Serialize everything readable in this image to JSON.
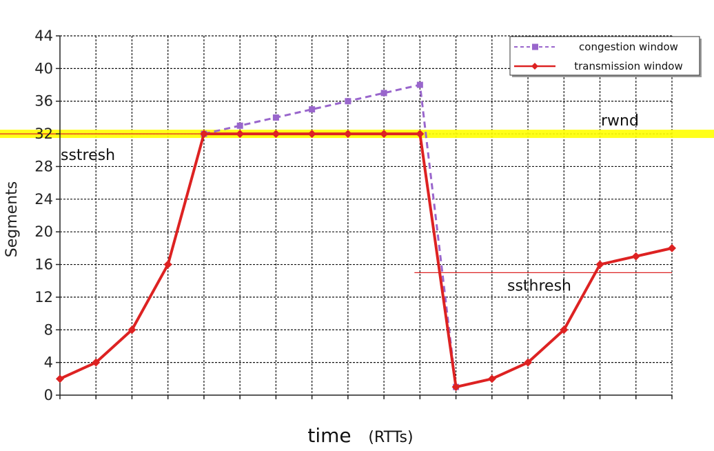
{
  "chart_data": {
    "type": "line",
    "ylabel": "Segments",
    "xlabel": "time",
    "xlabel_unit": "(RTTs)",
    "ylim": [
      0,
      44
    ],
    "yticks": [
      0,
      4,
      8,
      12,
      16,
      20,
      24,
      28,
      32,
      36,
      40,
      44
    ],
    "xlim": [
      0,
      17
    ],
    "grid": true,
    "legend_position": "top-right",
    "series": [
      {
        "name": "congestion window",
        "color": "#9966CC",
        "style": "dashed",
        "marker": "square",
        "x": [
          4,
          5,
          6,
          7,
          8,
          9,
          10,
          11
        ],
        "y": [
          32,
          33,
          34,
          35,
          36,
          37,
          38,
          1
        ]
      },
      {
        "name": "transmission window",
        "color": "#DD2222",
        "style": "solid",
        "marker": "diamond",
        "x": [
          0,
          1,
          2,
          3,
          4,
          5,
          6,
          7,
          8,
          9,
          10,
          11,
          12,
          13,
          14,
          15,
          16,
          17
        ],
        "y": [
          2,
          4,
          8,
          16,
          32,
          32,
          32,
          32,
          32,
          32,
          32,
          1,
          2,
          4,
          8,
          16,
          17,
          18
        ]
      }
    ],
    "reference_lines": [
      {
        "label": "rwnd",
        "y": 32,
        "color": "#FFFF00",
        "x_start": 0,
        "x_end": 17
      },
      {
        "label": "sstresh",
        "y": 32,
        "color": "#DD2222",
        "x_start": 0,
        "x_end": 4
      },
      {
        "label": "ssthresh",
        "y": 15,
        "color": "#DD2222",
        "x_start": 10,
        "x_end": 17
      }
    ]
  }
}
